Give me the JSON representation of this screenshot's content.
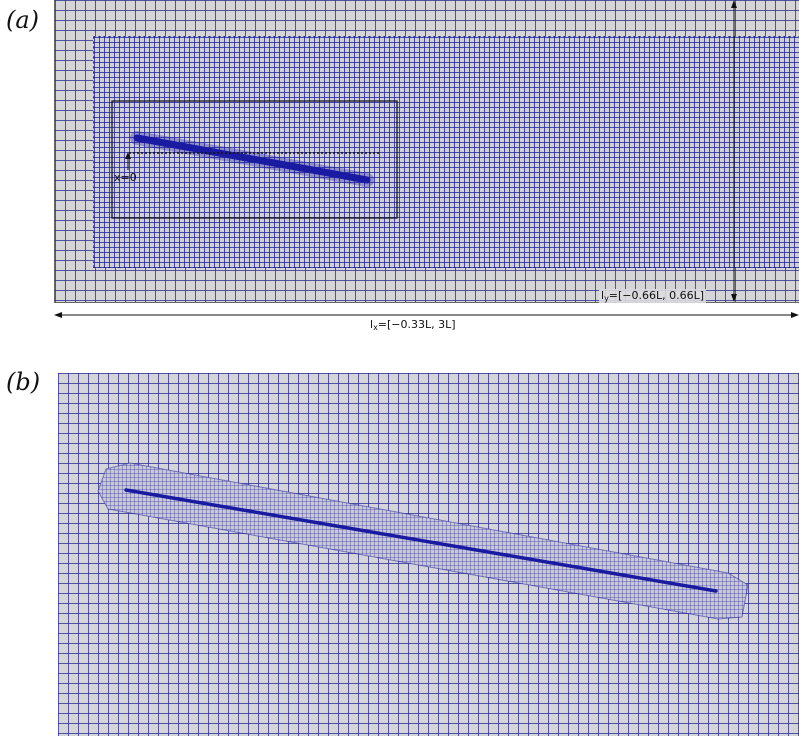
{
  "panels": {
    "a": {
      "label": "(a)"
    },
    "b": {
      "label": "(b)"
    }
  },
  "annotations": {
    "x0": "x=0",
    "ly_prefix": "l",
    "ly_sub": "y",
    "ly_rest": "=[−0.66L, 0.66L]",
    "lx_prefix": "l",
    "lx_sub": "x",
    "lx_rest": "=[−0.33L, 3L]"
  },
  "colors": {
    "mesh_line": "#28289a",
    "mesh_bg": "#d5d5d8",
    "body": "#1a1aa0"
  }
}
